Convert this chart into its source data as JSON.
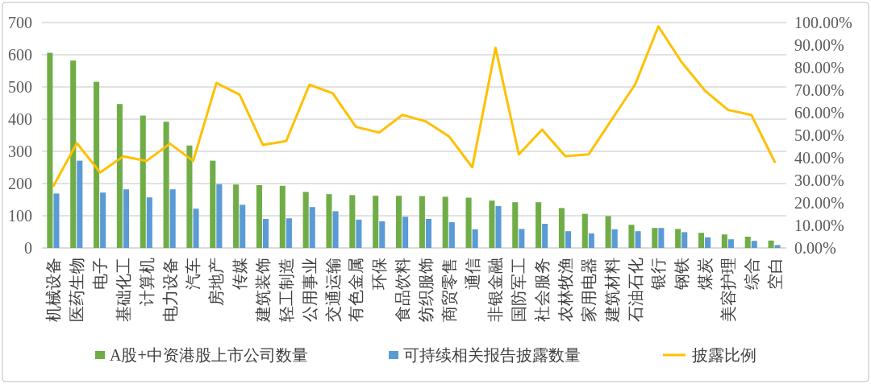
{
  "chart_data": {
    "type": "bar",
    "categories": [
      "机械设备",
      "医药生物",
      "电子",
      "基础化工",
      "计算机",
      "电力设备",
      "汽车",
      "房地产",
      "传媒",
      "建筑装饰",
      "轻工制造",
      "公用事业",
      "交通运输",
      "有色金属",
      "环保",
      "食品饮料",
      "纺织服饰",
      "商贸零售",
      "通信",
      "非银金融",
      "国防军工",
      "社会服务",
      "农林牧渔",
      "家用电器",
      "建筑材料",
      "石油石化",
      "银行",
      "钢铁",
      "煤炭",
      "美容护理",
      "综合",
      "空白"
    ],
    "series": [
      {
        "name": "A股+中资港股上市公司数量",
        "color": "#70ad47",
        "values": [
          606,
          582,
          516,
          447,
          411,
          392,
          318,
          271,
          197,
          195,
          193,
          174,
          167,
          164,
          162,
          162,
          161,
          159,
          156,
          147,
          142,
          142,
          124,
          106,
          99,
          72,
          62,
          59,
          47,
          42,
          35,
          23
        ]
      },
      {
        "name": "可持续相关报告披露数量",
        "color": "#5b9bd5",
        "values": [
          169,
          271,
          172,
          182,
          157,
          182,
          122,
          198,
          134,
          90,
          92,
          127,
          114,
          88,
          83,
          97,
          90,
          80,
          58,
          130,
          59,
          75,
          52,
          45,
          58,
          52,
          62,
          49,
          33,
          27,
          22,
          9
        ]
      },
      {
        "name": "披露比例",
        "type": "line",
        "axis": "y2",
        "color": "#ffc000",
        "values": [
          27.6,
          46.5,
          33.5,
          40.6,
          38.6,
          46.3,
          38.6,
          73.2,
          68.0,
          45.7,
          47.4,
          72.4,
          68.6,
          53.7,
          51.2,
          59.0,
          56.2,
          49.5,
          35.8,
          88.8,
          41.5,
          52.5,
          40.7,
          41.5,
          57.0,
          72.5,
          98.3,
          82.4,
          69.8,
          61.2,
          59.0,
          38.2
        ]
      }
    ],
    "ylim": [
      0,
      700
    ],
    "yticks": [
      0,
      100,
      200,
      300,
      400,
      500,
      600,
      700
    ],
    "y2lim": [
      0,
      100
    ],
    "y2ticks": [
      {
        "value": 0,
        "label": "0.00%"
      },
      {
        "value": 10,
        "label": "10.00%"
      },
      {
        "value": 20,
        "label": "20.00%"
      },
      {
        "value": 30,
        "label": "30.00%"
      },
      {
        "value": 40,
        "label": "40.00%"
      },
      {
        "value": 50,
        "label": "50.00%"
      },
      {
        "value": 60,
        "label": "60.00%"
      },
      {
        "value": 70,
        "label": "70.00%"
      },
      {
        "value": 80,
        "label": "80.00%"
      },
      {
        "value": 90,
        "label": "90.00%"
      },
      {
        "value": 100,
        "label": "100.00%"
      }
    ],
    "grid": "y",
    "legend": "bottom",
    "marker": "none",
    "line_style": "solid"
  }
}
